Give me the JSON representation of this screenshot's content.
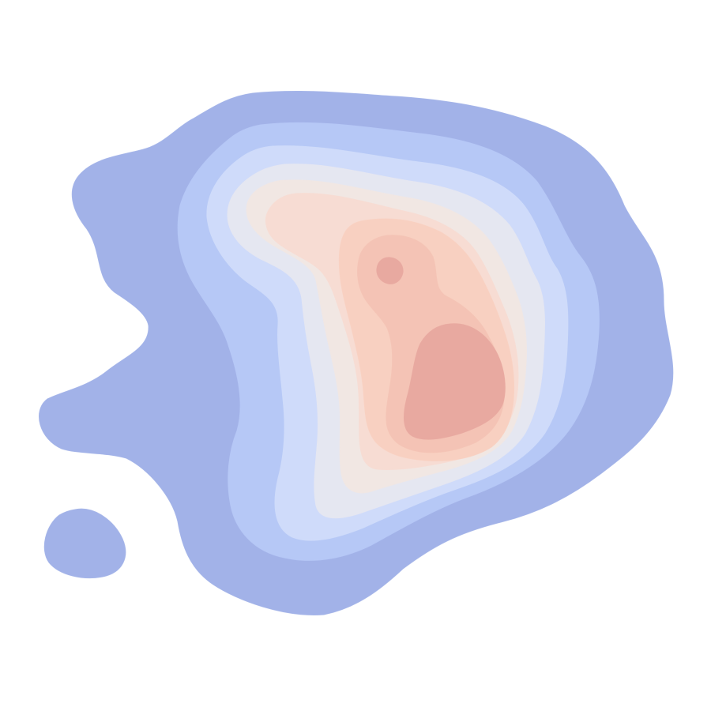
{
  "chart_data": {
    "type": "contour",
    "title": "",
    "xlabel": "",
    "ylabel": "",
    "axes_visible": false,
    "grid": false,
    "legend": "none",
    "colormap": "coolwarm",
    "levels": [
      {
        "level": 1,
        "color": "#a2b2e8"
      },
      {
        "level": 2,
        "color": "#b6c8f6"
      },
      {
        "level": 3,
        "color": "#cfdbfa"
      },
      {
        "level": 4,
        "color": "#e5e7f1"
      },
      {
        "level": 5,
        "color": "#f1e7e3"
      },
      {
        "level": 6,
        "color": "#f7dcd3"
      },
      {
        "level": 7,
        "color": "#f8d0c1"
      },
      {
        "level": 8,
        "color": "#f4c3b5"
      },
      {
        "level": 9,
        "color": "#e8a9a0"
      }
    ]
  }
}
